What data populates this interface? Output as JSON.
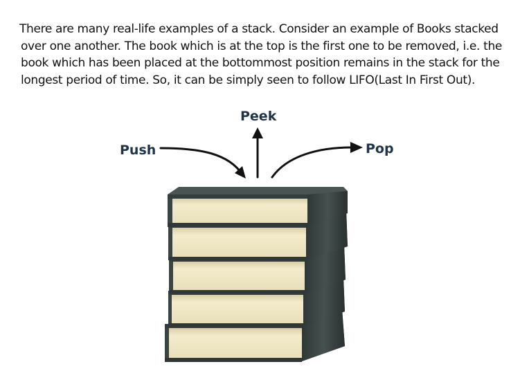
{
  "description_lines": [
    "There are many real-life examples of a stack. Consider an example of Books stacked",
    "over one another. The book which is at the top is the first one to be removed, i.e. the",
    "book which has been placed at the bottommost position remains in the stack for the",
    "longest period of time. So, it can be simply seen to follow LIFO(Last In First Out)."
  ],
  "diagram": {
    "labels": {
      "push": "Push",
      "peek": "Peek",
      "pop": "Pop"
    },
    "books_count": 5,
    "colors": {
      "text": "#111111",
      "label": "#1f3448",
      "arrow": "#111111",
      "cover": "#3c4644",
      "pages": "#efe6c4"
    }
  }
}
